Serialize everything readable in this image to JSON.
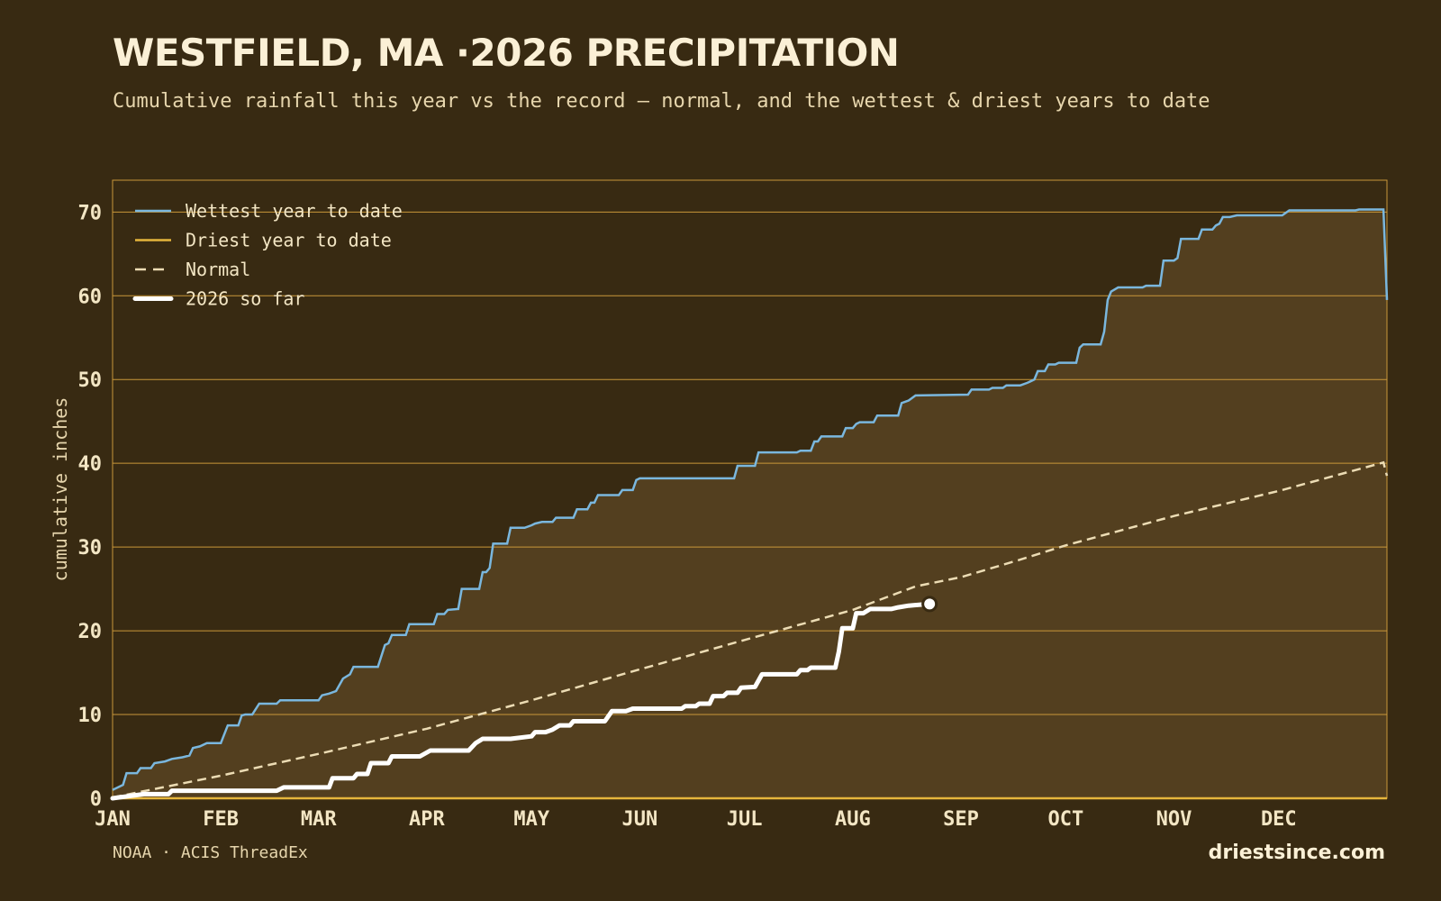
{
  "header": {
    "title": "WESTFIELD, MA ·2026 PRECIPITATION",
    "subtitle": "Cumulative rainfall this year vs the record — normal, and the wettest & driest years to date"
  },
  "footer": {
    "source": "NOAA · ACIS ThreadEx",
    "site": "driestsince.com"
  },
  "colors": {
    "background": "#382a12",
    "fill": "#533f1f",
    "grid": "#c9973a",
    "wettest": "#7ab7de",
    "driest": "#e6b63c",
    "normal": "#ecdcb4",
    "current": "#ffffff",
    "text": "#f3e6c4"
  },
  "chart_data": {
    "type": "line",
    "ylabel": "cumulative inches",
    "ylim": [
      0,
      73.8
    ],
    "xlim": [
      0,
      365
    ],
    "yticks": [
      0,
      10,
      20,
      30,
      40,
      50,
      60,
      70
    ],
    "xticks": [
      {
        "day": 0,
        "label": "JAN"
      },
      {
        "day": 31,
        "label": "FEB"
      },
      {
        "day": 59,
        "label": "MAR"
      },
      {
        "day": 90,
        "label": "APR"
      },
      {
        "day": 120,
        "label": "MAY"
      },
      {
        "day": 151,
        "label": "JUN"
      },
      {
        "day": 181,
        "label": "JUL"
      },
      {
        "day": 212,
        "label": "AUG"
      },
      {
        "day": 243,
        "label": "SEP"
      },
      {
        "day": 273,
        "label": "OCT"
      },
      {
        "day": 304,
        "label": "NOV"
      },
      {
        "day": 334,
        "label": "DEC"
      }
    ],
    "grid": true,
    "legend_position": "top-left",
    "series": [
      {
        "name": "Wettest year to date",
        "key": "wettest",
        "style": "step",
        "points": [
          [
            0,
            1.0
          ],
          [
            3,
            1.6
          ],
          [
            4,
            3.0
          ],
          [
            7,
            3.0
          ],
          [
            8,
            3.6
          ],
          [
            11,
            3.6
          ],
          [
            12,
            4.2
          ],
          [
            15,
            4.4
          ],
          [
            17,
            4.7
          ],
          [
            20,
            4.9
          ],
          [
            22,
            5.1
          ],
          [
            23,
            6.0
          ],
          [
            25,
            6.2
          ],
          [
            27,
            6.6
          ],
          [
            31,
            6.6
          ],
          [
            33,
            8.7
          ],
          [
            36,
            8.7
          ],
          [
            37,
            9.9
          ],
          [
            38,
            10.0
          ],
          [
            40,
            10.0
          ],
          [
            42,
            11.3
          ],
          [
            47,
            11.3
          ],
          [
            48,
            11.7
          ],
          [
            59,
            11.7
          ],
          [
            60,
            12.3
          ],
          [
            62,
            12.5
          ],
          [
            64,
            12.8
          ],
          [
            66,
            14.3
          ],
          [
            68,
            14.8
          ],
          [
            69,
            15.7
          ],
          [
            76,
            15.7
          ],
          [
            77,
            17.0
          ],
          [
            78,
            18.3
          ],
          [
            79,
            18.5
          ],
          [
            80,
            19.5
          ],
          [
            84,
            19.5
          ],
          [
            85,
            20.8
          ],
          [
            92,
            20.8
          ],
          [
            93,
            22.0
          ],
          [
            95,
            22.0
          ],
          [
            96,
            22.5
          ],
          [
            99,
            22.6
          ],
          [
            100,
            25.0
          ],
          [
            105,
            25.0
          ],
          [
            106,
            27.0
          ],
          [
            107,
            27.0
          ],
          [
            108,
            27.5
          ],
          [
            109,
            30.4
          ],
          [
            113,
            30.4
          ],
          [
            114,
            32.3
          ],
          [
            118,
            32.3
          ],
          [
            120,
            32.6
          ],
          [
            121,
            32.8
          ],
          [
            123,
            33.0
          ],
          [
            126,
            33.0
          ],
          [
            127,
            33.5
          ],
          [
            132,
            33.5
          ],
          [
            133,
            34.5
          ],
          [
            136,
            34.5
          ],
          [
            137,
            35.3
          ],
          [
            138,
            35.3
          ],
          [
            139,
            36.2
          ],
          [
            145,
            36.2
          ],
          [
            146,
            36.8
          ],
          [
            149,
            36.8
          ],
          [
            150,
            38.0
          ],
          [
            151,
            38.2
          ],
          [
            178,
            38.2
          ],
          [
            179,
            39.7
          ],
          [
            184,
            39.7
          ],
          [
            185,
            41.3
          ],
          [
            196,
            41.3
          ],
          [
            197,
            41.5
          ],
          [
            200,
            41.5
          ],
          [
            201,
            42.6
          ],
          [
            202,
            42.6
          ],
          [
            203,
            43.2
          ],
          [
            209,
            43.2
          ],
          [
            210,
            44.2
          ],
          [
            212,
            44.2
          ],
          [
            213,
            44.7
          ],
          [
            214,
            44.9
          ],
          [
            218,
            44.9
          ],
          [
            219,
            45.7
          ],
          [
            225,
            45.7
          ],
          [
            226,
            47.2
          ],
          [
            228,
            47.5
          ],
          [
            230,
            48.1
          ],
          [
            245,
            48.2
          ],
          [
            246,
            48.8
          ],
          [
            251,
            48.8
          ],
          [
            252,
            49.0
          ],
          [
            255,
            49.0
          ],
          [
            256,
            49.3
          ],
          [
            260,
            49.3
          ],
          [
            262,
            49.6
          ],
          [
            264,
            50.0
          ],
          [
            265,
            51.0
          ],
          [
            267,
            51.0
          ],
          [
            268,
            51.8
          ],
          [
            270,
            51.8
          ],
          [
            271,
            52.0
          ],
          [
            276,
            52.0
          ],
          [
            277,
            53.8
          ],
          [
            278,
            54.2
          ],
          [
            283,
            54.2
          ],
          [
            284,
            55.7
          ],
          [
            285,
            59.5
          ],
          [
            286,
            60.5
          ],
          [
            288,
            61.0
          ],
          [
            295,
            61.0
          ],
          [
            296,
            61.2
          ],
          [
            300,
            61.2
          ],
          [
            301,
            64.2
          ],
          [
            304,
            64.2
          ],
          [
            305,
            64.5
          ],
          [
            306,
            66.8
          ],
          [
            311,
            66.8
          ],
          [
            312,
            67.9
          ],
          [
            315,
            67.9
          ],
          [
            316,
            68.4
          ],
          [
            317,
            68.6
          ],
          [
            318,
            69.4
          ],
          [
            320,
            69.4
          ],
          [
            322,
            69.6
          ],
          [
            335,
            69.6
          ],
          [
            337,
            70.2
          ],
          [
            356,
            70.2
          ],
          [
            357,
            70.3
          ],
          [
            364,
            70.3
          ],
          [
            365,
            59.5
          ]
        ]
      },
      {
        "name": "Driest year to date",
        "key": "driest",
        "style": "line",
        "points": [
          [
            0,
            0
          ],
          [
            365,
            0
          ]
        ]
      },
      {
        "name": "Normal",
        "key": "normal",
        "style": "dashed",
        "points": [
          [
            0,
            0.1
          ],
          [
            31,
            2.7
          ],
          [
            59,
            5.3
          ],
          [
            90,
            8.3
          ],
          [
            120,
            11.7
          ],
          [
            151,
            15.4
          ],
          [
            181,
            18.9
          ],
          [
            212,
            22.5
          ],
          [
            230,
            25.3
          ],
          [
            243,
            26.4
          ],
          [
            260,
            28.5
          ],
          [
            273,
            30.2
          ],
          [
            304,
            33.7
          ],
          [
            334,
            36.7
          ],
          [
            364,
            40.1
          ],
          [
            365,
            38.5
          ]
        ]
      },
      {
        "name": "2026 so far",
        "key": "current",
        "style": "step-bold",
        "points": [
          [
            0,
            0
          ],
          [
            9,
            0.5
          ],
          [
            16,
            0.5
          ],
          [
            17,
            0.9
          ],
          [
            47,
            0.9
          ],
          [
            49,
            1.3
          ],
          [
            62,
            1.3
          ],
          [
            63,
            2.4
          ],
          [
            69,
            2.4
          ],
          [
            70,
            2.9
          ],
          [
            73,
            2.9
          ],
          [
            74,
            4.2
          ],
          [
            79,
            4.2
          ],
          [
            80,
            5.0
          ],
          [
            88,
            5.0
          ],
          [
            91,
            5.7
          ],
          [
            102,
            5.7
          ],
          [
            104,
            6.6
          ],
          [
            106,
            7.1
          ],
          [
            114,
            7.1
          ],
          [
            120,
            7.4
          ],
          [
            121,
            7.9
          ],
          [
            124,
            7.9
          ],
          [
            126,
            8.2
          ],
          [
            128,
            8.7
          ],
          [
            131,
            8.7
          ],
          [
            132,
            9.2
          ],
          [
            141,
            9.2
          ],
          [
            143,
            10.4
          ],
          [
            147,
            10.4
          ],
          [
            149,
            10.7
          ],
          [
            163,
            10.7
          ],
          [
            164,
            11.0
          ],
          [
            167,
            11.0
          ],
          [
            168,
            11.3
          ],
          [
            171,
            11.3
          ],
          [
            172,
            12.2
          ],
          [
            175,
            12.2
          ],
          [
            176,
            12.6
          ],
          [
            179,
            12.6
          ],
          [
            180,
            13.2
          ],
          [
            184,
            13.3
          ],
          [
            186,
            14.8
          ],
          [
            196,
            14.8
          ],
          [
            197,
            15.3
          ],
          [
            199,
            15.3
          ],
          [
            200,
            15.6
          ],
          [
            207,
            15.6
          ],
          [
            208,
            17.5
          ],
          [
            209,
            20.3
          ],
          [
            212,
            20.3
          ],
          [
            213,
            22.1
          ],
          [
            215,
            22.1
          ],
          [
            217,
            22.6
          ],
          [
            223,
            22.6
          ],
          [
            225,
            22.8
          ],
          [
            228,
            23.0
          ],
          [
            234,
            23.2
          ]
        ]
      }
    ],
    "current_marker": [
      234,
      23.2
    ]
  }
}
